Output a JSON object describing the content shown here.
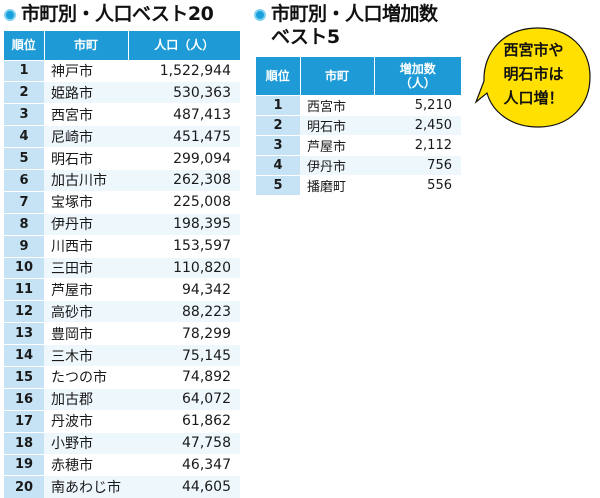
{
  "left": {
    "title": "市町別・人口ベスト20",
    "headers": [
      "順位",
      "市町",
      "人口（人）"
    ],
    "rows": [
      {
        "rank": "1",
        "city": "神戸市",
        "value": "1,522,944"
      },
      {
        "rank": "2",
        "city": "姫路市",
        "value": "530,363"
      },
      {
        "rank": "3",
        "city": "西宮市",
        "value": "487,413"
      },
      {
        "rank": "4",
        "city": "尼崎市",
        "value": "451,475"
      },
      {
        "rank": "5",
        "city": "明石市",
        "value": "299,094"
      },
      {
        "rank": "6",
        "city": "加古川市",
        "value": "262,308"
      },
      {
        "rank": "7",
        "city": "宝塚市",
        "value": "225,008"
      },
      {
        "rank": "8",
        "city": "伊丹市",
        "value": "198,395"
      },
      {
        "rank": "9",
        "city": "川西市",
        "value": "153,597"
      },
      {
        "rank": "10",
        "city": "三田市",
        "value": "110,820"
      },
      {
        "rank": "11",
        "city": "芦屋市",
        "value": "94,342"
      },
      {
        "rank": "12",
        "city": "高砂市",
        "value": "88,223"
      },
      {
        "rank": "13",
        "city": "豊岡市",
        "value": "78,299"
      },
      {
        "rank": "14",
        "city": "三木市",
        "value": "75,145"
      },
      {
        "rank": "15",
        "city": "たつの市",
        "value": "74,892"
      },
      {
        "rank": "16",
        "city": "加古郡",
        "value": "64,072"
      },
      {
        "rank": "17",
        "city": "丹波市",
        "value": "61,862"
      },
      {
        "rank": "18",
        "city": "小野市",
        "value": "47,758"
      },
      {
        "rank": "19",
        "city": "赤穂市",
        "value": "46,347"
      },
      {
        "rank": "20",
        "city": "南あわじ市",
        "value": "44,605"
      }
    ]
  },
  "right": {
    "title_line1": "市町別・人口増加数",
    "title_line2": "ベスト5",
    "headers": [
      "順位",
      "市町",
      "増加数",
      "（人）"
    ],
    "rows": [
      {
        "rank": "1",
        "city": "西宮市",
        "value": "5,210"
      },
      {
        "rank": "2",
        "city": "明石市",
        "value": "2,450"
      },
      {
        "rank": "3",
        "city": "芦屋市",
        "value": "2,112"
      },
      {
        "rank": "4",
        "city": "伊丹市",
        "value": "756"
      },
      {
        "rank": "5",
        "city": "播磨町",
        "value": "556"
      }
    ]
  },
  "bubble": {
    "lines": [
      "西宮市や",
      "明石市は",
      "人口増！"
    ],
    "fill": "#ffe000"
  },
  "colors": {
    "header": "#1e9bd7",
    "rank_cell": "#c6e3f5",
    "row_alt": "#eef7fc",
    "accent_dot": "#1aa0dc"
  }
}
